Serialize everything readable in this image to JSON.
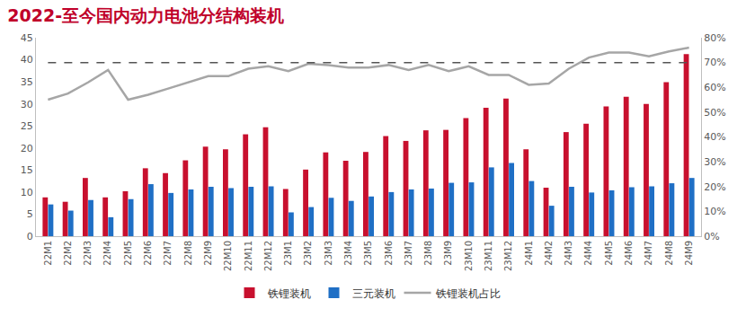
{
  "chart_data": {
    "type": "bar",
    "title": "2022-至今国内动力电池分结构装机",
    "categories": [
      "22M1",
      "22M2",
      "22M3",
      "22M4",
      "22M5",
      "22M6",
      "22M7",
      "22M8",
      "22M9",
      "22M10",
      "22M11",
      "22M12",
      "23M1",
      "23M2",
      "23M3",
      "23M4",
      "23M5",
      "23M6",
      "23M7",
      "23M8",
      "23M9",
      "23M10",
      "23M11",
      "23M12",
      "24M1",
      "24M2",
      "24M3",
      "24M4",
      "24M5",
      "24M6",
      "24M7",
      "24M8",
      "24M9"
    ],
    "series": [
      {
        "name": "铁锂装机",
        "type": "bar",
        "color": "#C8102E",
        "values": [
          8.8,
          7.8,
          13.2,
          8.8,
          10.2,
          15.4,
          14.3,
          17.2,
          20.3,
          19.7,
          23.1,
          24.7,
          10.7,
          15.1,
          19.0,
          17.1,
          19.1,
          22.7,
          21.6,
          24.0,
          24.1,
          26.8,
          29.1,
          31.2,
          19.7,
          11.0,
          23.6,
          25.5,
          29.4,
          31.6,
          30.0,
          34.9,
          41.3
        ]
      },
      {
        "name": "三元装机",
        "type": "bar",
        "color": "#1F6FC5",
        "values": [
          7.2,
          5.8,
          8.2,
          4.3,
          8.4,
          11.8,
          9.8,
          10.6,
          11.2,
          10.9,
          11.2,
          11.3,
          5.4,
          6.6,
          8.7,
          8.0,
          9.0,
          10.0,
          10.6,
          10.8,
          12.1,
          12.2,
          15.6,
          16.6,
          12.5,
          6.9,
          11.2,
          9.9,
          10.4,
          11.1,
          11.3,
          12.0,
          13.2
        ]
      },
      {
        "name": "铁锂装机占比",
        "type": "line",
        "color": "#A6A6A6",
        "axis": "y2",
        "line_style": "solid",
        "values": [
          55,
          57.5,
          62,
          67,
          55,
          57,
          59.5,
          62,
          64.5,
          64.5,
          67.5,
          68.5,
          66.5,
          69.5,
          69,
          68,
          68,
          69,
          67,
          69,
          66.5,
          68.5,
          65,
          65,
          61,
          61.5,
          67.5,
          72,
          74,
          74,
          72.5,
          74.5,
          76
        ]
      },
      {
        "type": "line",
        "color": "#555555",
        "axis": "y2",
        "line_style": "dashed",
        "values": [
          70,
          70,
          70,
          70,
          70,
          70,
          70,
          70,
          70,
          70,
          70,
          70,
          70,
          70,
          70,
          70,
          70,
          70,
          70,
          70,
          70,
          70,
          70,
          70,
          70,
          70,
          70,
          70,
          70,
          70,
          70,
          70,
          70
        ]
      }
    ],
    "ylim": [
      0,
      45
    ],
    "yticks": [
      0,
      5,
      10,
      15,
      20,
      25,
      30,
      35,
      40,
      45
    ],
    "y2lim": [
      0,
      80
    ],
    "y2ticks": [
      {
        "value": 0,
        "label": "0%"
      },
      {
        "value": 10,
        "label": "10%"
      },
      {
        "value": 20,
        "label": "20%"
      },
      {
        "value": 30,
        "label": "30%"
      },
      {
        "value": 40,
        "label": "40%"
      },
      {
        "value": 50,
        "label": "50%"
      },
      {
        "value": 60,
        "label": "60%"
      },
      {
        "value": 70,
        "label": "70%"
      },
      {
        "value": 80,
        "label": "80%"
      }
    ],
    "grid": false,
    "legend": "bottom"
  }
}
